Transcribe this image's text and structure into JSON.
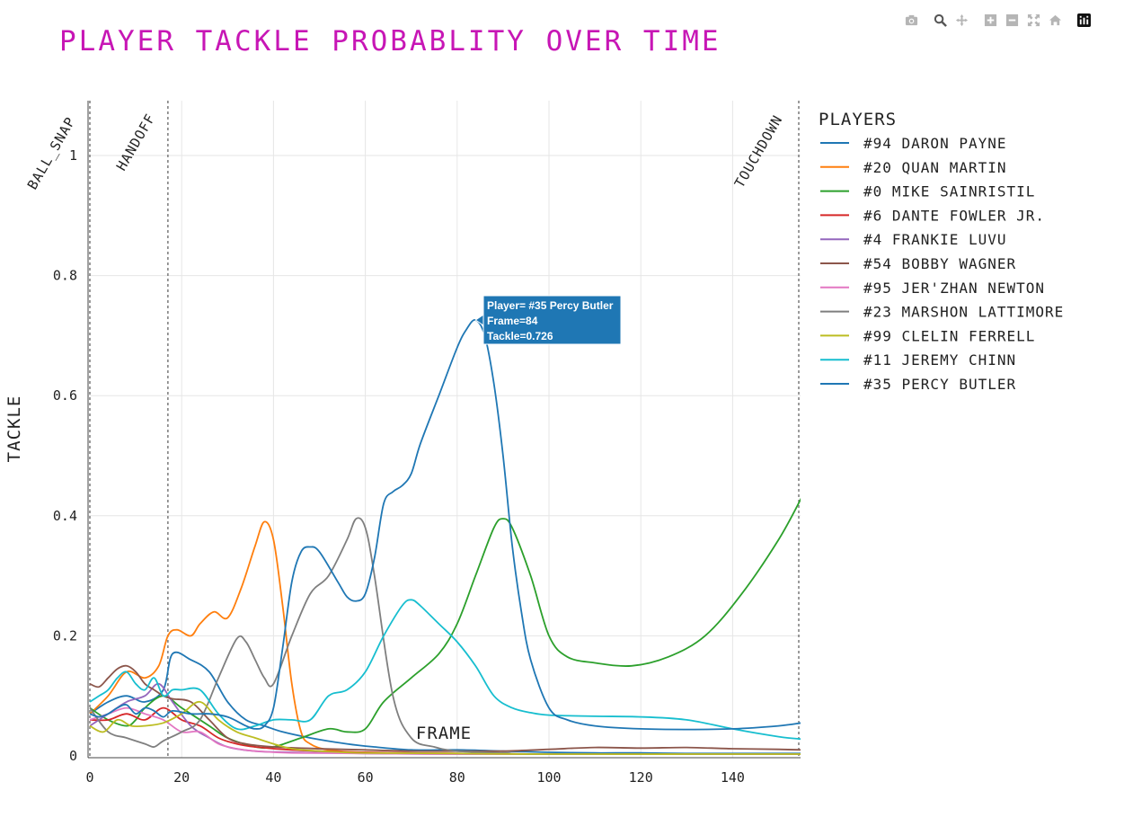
{
  "title": "PLAYER TACKLE PROBABLITY OVER TIME",
  "modebar": [
    {
      "name": "camera-icon",
      "label": "Download plot as a png"
    },
    {
      "name": "zoom-icon",
      "label": "Zoom"
    },
    {
      "name": "pan-icon",
      "label": "Pan"
    },
    {
      "name": "zoom-in-icon",
      "label": "Zoom in"
    },
    {
      "name": "zoom-out-icon",
      "label": "Zoom out"
    },
    {
      "name": "autoscale-icon",
      "label": "Autoscale"
    },
    {
      "name": "reset-axes-icon",
      "label": "Reset axes"
    },
    {
      "name": "plotly-logo-icon",
      "label": "Produced with Plotly"
    }
  ],
  "chart_data": {
    "type": "line",
    "title": "PLAYER TACKLE PROBABLITY OVER TIME",
    "xlabel": "FRAME",
    "ylabel": "TACKLE",
    "xlim": [
      0,
      155
    ],
    "ylim": [
      0,
      1.0
    ],
    "xticks": [
      0,
      20,
      40,
      60,
      80,
      100,
      120,
      140
    ],
    "yticks": [
      0,
      0.2,
      0.4,
      0.6,
      0.8,
      1
    ],
    "ytick_labels": [
      "0",
      "0.2",
      "0.4",
      "0.6",
      "0.8",
      "1"
    ],
    "grid": true,
    "legend_title": "PLAYERS",
    "legend_position": "right",
    "vlines": [
      {
        "x": 0,
        "label": "BALL_SNAP"
      },
      {
        "x": 17,
        "label": "HANDOFF"
      },
      {
        "x": 155,
        "label": "TOUCHDOWN"
      }
    ],
    "series": [
      {
        "name": "#94 DARON PAYNE",
        "color": "#1f77b4",
        "x": [
          0,
          4,
          8,
          12,
          16,
          18,
          22,
          26,
          30,
          34,
          38,
          42,
          48,
          56,
          62,
          70,
          80,
          90,
          100,
          110,
          120,
          130,
          140,
          150,
          155
        ],
        "y": [
          0.07,
          0.09,
          0.1,
          0.09,
          0.11,
          0.17,
          0.16,
          0.14,
          0.09,
          0.06,
          0.05,
          0.04,
          0.03,
          0.02,
          0.015,
          0.01,
          0.01,
          0.008,
          0.006,
          0.005,
          0.005,
          0.004,
          0.004,
          0.004,
          0.004
        ]
      },
      {
        "name": "#20 QUAN MARTIN",
        "color": "#ff7f0e",
        "x": [
          0,
          4,
          8,
          12,
          15,
          17,
          19,
          22,
          24,
          27,
          30,
          33,
          36,
          38,
          40,
          42,
          44,
          46,
          48,
          52,
          60,
          80,
          100,
          155
        ],
        "y": [
          0.07,
          0.1,
          0.14,
          0.13,
          0.15,
          0.2,
          0.21,
          0.2,
          0.22,
          0.24,
          0.23,
          0.28,
          0.35,
          0.39,
          0.36,
          0.25,
          0.12,
          0.04,
          0.02,
          0.01,
          0.006,
          0.004,
          0.003,
          0.003
        ]
      },
      {
        "name": "#0 MIKE SAINRISTIL",
        "color": "#2ca02c",
        "x": [
          0,
          4,
          8,
          10,
          12,
          16,
          20,
          26,
          30,
          36,
          40,
          46,
          52,
          56,
          60,
          64,
          70,
          76,
          80,
          84,
          88,
          90,
          92,
          96,
          100,
          104,
          110,
          118,
          126,
          134,
          142,
          150,
          155
        ],
        "y": [
          0.08,
          0.06,
          0.05,
          0.06,
          0.08,
          0.1,
          0.08,
          0.05,
          0.03,
          0.015,
          0.015,
          0.03,
          0.045,
          0.04,
          0.045,
          0.09,
          0.13,
          0.17,
          0.22,
          0.3,
          0.38,
          0.395,
          0.38,
          0.3,
          0.2,
          0.165,
          0.155,
          0.15,
          0.165,
          0.2,
          0.27,
          0.36,
          0.43
        ]
      },
      {
        "name": "#6 DANTE FOWLER JR.",
        "color": "#d62728",
        "x": [
          0,
          4,
          8,
          12,
          16,
          20,
          24,
          28,
          32,
          36,
          44,
          60,
          80,
          100,
          130,
          155
        ],
        "y": [
          0.06,
          0.06,
          0.07,
          0.06,
          0.08,
          0.06,
          0.05,
          0.03,
          0.02,
          0.015,
          0.01,
          0.006,
          0.004,
          0.003,
          0.003,
          0.003
        ]
      },
      {
        "name": "#4 FRANKIE LUVU",
        "color": "#9467bd",
        "x": [
          0,
          4,
          8,
          12,
          15,
          18,
          22,
          26,
          30,
          36,
          44,
          60,
          80,
          100,
          130,
          155
        ],
        "y": [
          0.05,
          0.07,
          0.09,
          0.1,
          0.12,
          0.09,
          0.05,
          0.03,
          0.015,
          0.008,
          0.006,
          0.004,
          0.003,
          0.003,
          0.003,
          0.003
        ]
      },
      {
        "name": "#54 BOBBY WAGNER",
        "color": "#8c564b",
        "x": [
          0,
          2,
          4,
          6,
          8,
          10,
          12,
          14,
          16,
          18,
          22,
          26,
          30,
          34,
          40,
          50,
          60,
          70,
          80,
          90,
          100,
          110,
          120,
          130,
          140,
          150,
          155
        ],
        "y": [
          0.12,
          0.115,
          0.13,
          0.145,
          0.15,
          0.14,
          0.12,
          0.11,
          0.1,
          0.095,
          0.09,
          0.06,
          0.03,
          0.02,
          0.015,
          0.012,
          0.01,
          0.008,
          0.008,
          0.008,
          0.011,
          0.014,
          0.013,
          0.014,
          0.012,
          0.011,
          0.01
        ]
      },
      {
        "name": "#95 JER'ZHAN NEWTON",
        "color": "#e377c2",
        "x": [
          0,
          4,
          8,
          12,
          16,
          20,
          24,
          28,
          32,
          36,
          44,
          60,
          80,
          100,
          130,
          155
        ],
        "y": [
          0.06,
          0.07,
          0.08,
          0.07,
          0.06,
          0.04,
          0.04,
          0.02,
          0.012,
          0.008,
          0.005,
          0.004,
          0.003,
          0.003,
          0.003,
          0.003
        ]
      },
      {
        "name": "#23 MARSHON LATTIMORE",
        "color": "#7f7f7f",
        "x": [
          0,
          4,
          8,
          12,
          14,
          16,
          20,
          24,
          28,
          32,
          34,
          36,
          38,
          40,
          44,
          48,
          52,
          56,
          58,
          60,
          62,
          66,
          70,
          75,
          80,
          90,
          100,
          155
        ],
        "y": [
          0.08,
          0.04,
          0.03,
          0.02,
          0.015,
          0.025,
          0.04,
          0.06,
          0.13,
          0.195,
          0.19,
          0.16,
          0.13,
          0.12,
          0.2,
          0.27,
          0.3,
          0.36,
          0.395,
          0.38,
          0.3,
          0.1,
          0.03,
          0.015,
          0.008,
          0.005,
          0.003,
          0.003
        ]
      },
      {
        "name": "#99 CLELIN FERRELL",
        "color": "#bcbd22",
        "x": [
          0,
          3,
          6,
          9,
          12,
          16,
          20,
          24,
          28,
          32,
          36,
          40,
          44,
          50,
          60,
          80,
          100,
          155
        ],
        "y": [
          0.05,
          0.04,
          0.06,
          0.05,
          0.05,
          0.055,
          0.07,
          0.09,
          0.06,
          0.04,
          0.03,
          0.02,
          0.012,
          0.008,
          0.005,
          0.004,
          0.003,
          0.003
        ]
      },
      {
        "name": "#11 JEREMY CHINN",
        "color": "#17becf",
        "x": [
          0,
          2,
          4,
          6,
          8,
          10,
          12,
          14,
          16,
          18,
          20,
          24,
          28,
          32,
          36,
          40,
          44,
          48,
          52,
          56,
          60,
          64,
          68,
          70,
          72,
          76,
          80,
          84,
          88,
          92,
          96,
          100,
          110,
          120,
          130,
          140,
          150,
          155
        ],
        "y": [
          0.09,
          0.1,
          0.11,
          0.13,
          0.14,
          0.12,
          0.11,
          0.13,
          0.1,
          0.11,
          0.11,
          0.11,
          0.07,
          0.045,
          0.05,
          0.06,
          0.06,
          0.06,
          0.1,
          0.11,
          0.14,
          0.2,
          0.25,
          0.26,
          0.25,
          0.22,
          0.19,
          0.15,
          0.1,
          0.08,
          0.072,
          0.068,
          0.066,
          0.065,
          0.06,
          0.045,
          0.032,
          0.028
        ]
      },
      {
        "name": "#35 PERCY BUTLER",
        "color": "#1f77b4",
        "x": [
          0,
          2,
          4,
          6,
          8,
          10,
          12,
          14,
          16,
          18,
          22,
          26,
          30,
          34,
          36,
          38,
          40,
          42,
          44,
          46,
          48,
          50,
          54,
          56,
          58,
          60,
          62,
          64,
          66,
          68,
          70,
          72,
          76,
          80,
          82,
          84,
          86,
          88,
          90,
          92,
          94,
          96,
          100,
          104,
          110,
          120,
          130,
          140,
          150,
          155
        ],
        "y": [
          0.07,
          0.065,
          0.07,
          0.08,
          0.085,
          0.07,
          0.08,
          0.075,
          0.065,
          0.075,
          0.07,
          0.07,
          0.065,
          0.05,
          0.045,
          0.05,
          0.08,
          0.18,
          0.29,
          0.34,
          0.348,
          0.34,
          0.29,
          0.265,
          0.258,
          0.27,
          0.33,
          0.42,
          0.44,
          0.45,
          0.47,
          0.52,
          0.6,
          0.68,
          0.71,
          0.726,
          0.7,
          0.62,
          0.5,
          0.35,
          0.24,
          0.16,
          0.08,
          0.06,
          0.05,
          0.045,
          0.044,
          0.045,
          0.05,
          0.055
        ]
      }
    ],
    "tooltip": {
      "lines": [
        "Player= #35 Percy Butler",
        "Frame=84",
        "Tackle=0.726"
      ],
      "series": "#35 PERCY BUTLER",
      "x": 84,
      "y": 0.726
    }
  }
}
